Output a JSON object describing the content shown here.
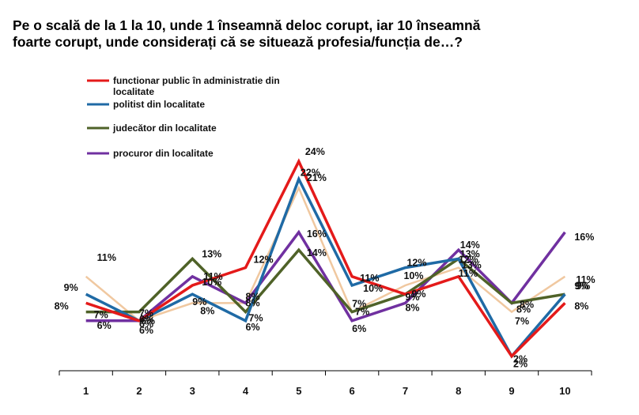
{
  "chart_data": {
    "type": "line",
    "title_lines": [
      "Pe o scală de la 1 la 10, unde 1 înseamnă deloc corupt, iar 10 înseamnă",
      "foarte corupt, unde considerați că se situează profesia/funcția de…?"
    ],
    "categories": [
      "1",
      "2",
      "3",
      "4",
      "5",
      "6",
      "7",
      "8",
      "9",
      "10"
    ],
    "ylim": [
      0,
      28
    ],
    "grid": false,
    "legend_position": "top-left",
    "series": [
      {
        "name": "avg",
        "legend_label": null,
        "color": "#f0c8a0",
        "values": [
          11,
          6,
          8,
          8,
          21,
          7,
          10,
          12,
          7,
          11
        ],
        "labels": [
          "11%",
          "6%",
          "8%",
          "8%",
          "21%",
          "7%",
          "10%",
          "12%",
          "7%",
          "11%"
        ]
      },
      {
        "name": "procuror",
        "legend_label": "procuror din localitate",
        "color": "#7030a0",
        "values": [
          6,
          6,
          11,
          8,
          16,
          6,
          8,
          14,
          8,
          16
        ],
        "labels": [
          "6%",
          "6%",
          "11%",
          "8%",
          "16%",
          "6%",
          "8%",
          "14%",
          "8%",
          "16%"
        ]
      },
      {
        "name": "judecator",
        "legend_label": "judecător din localitate",
        "color": "#4f6228",
        "values": [
          7,
          7,
          13,
          7,
          14,
          7,
          9,
          13,
          8,
          9
        ],
        "labels": [
          "7%",
          "7%",
          "13%",
          "7%",
          "14%",
          "7%",
          "9%",
          "13%",
          "8%",
          "9%"
        ]
      },
      {
        "name": "politist",
        "legend_label": "politist din localitate",
        "color": "#1f6aa5",
        "values": [
          9,
          6,
          9,
          6,
          22,
          10,
          12,
          13,
          2,
          9
        ],
        "labels": [
          "9%",
          "6%",
          "9%",
          "6%",
          "22%",
          "10%",
          "12%",
          "13%",
          "2%",
          "9%"
        ]
      },
      {
        "name": "functionar",
        "legend_label": "functionar public în administratie din localitate",
        "color": "#e41a1a",
        "values": [
          8,
          6,
          10,
          12,
          24,
          11,
          9,
          11,
          2,
          8
        ],
        "labels": [
          "8%",
          "6%",
          "10%",
          "12%",
          "24%",
          "11%",
          "9%",
          "11%",
          "2%",
          "8%"
        ]
      }
    ],
    "legend_order": [
      "functionar",
      "politist",
      "judecator",
      "procuror"
    ],
    "legend_lines": {
      "functionar": [
        "functionar public în administratie din",
        "localitate"
      ]
    }
  }
}
